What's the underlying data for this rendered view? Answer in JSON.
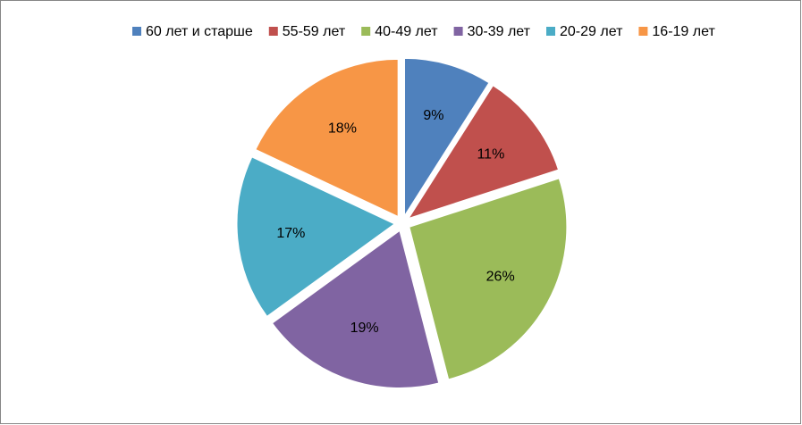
{
  "chart_data": {
    "type": "pie",
    "categories": [
      "60 лет и старше",
      "55-59 лет",
      "40-49 лет",
      "30-39 лет",
      "20-29 лет",
      "16-19 лет"
    ],
    "values": [
      9,
      11,
      26,
      19,
      17,
      18
    ],
    "value_labels": [
      "9%",
      "11%",
      "26%",
      "19%",
      "17%",
      "18%"
    ],
    "colors": [
      "#4f81bd",
      "#c0504d",
      "#9bbb59",
      "#8064a2",
      "#4bacc6",
      "#f79646"
    ],
    "legend": "top"
  }
}
